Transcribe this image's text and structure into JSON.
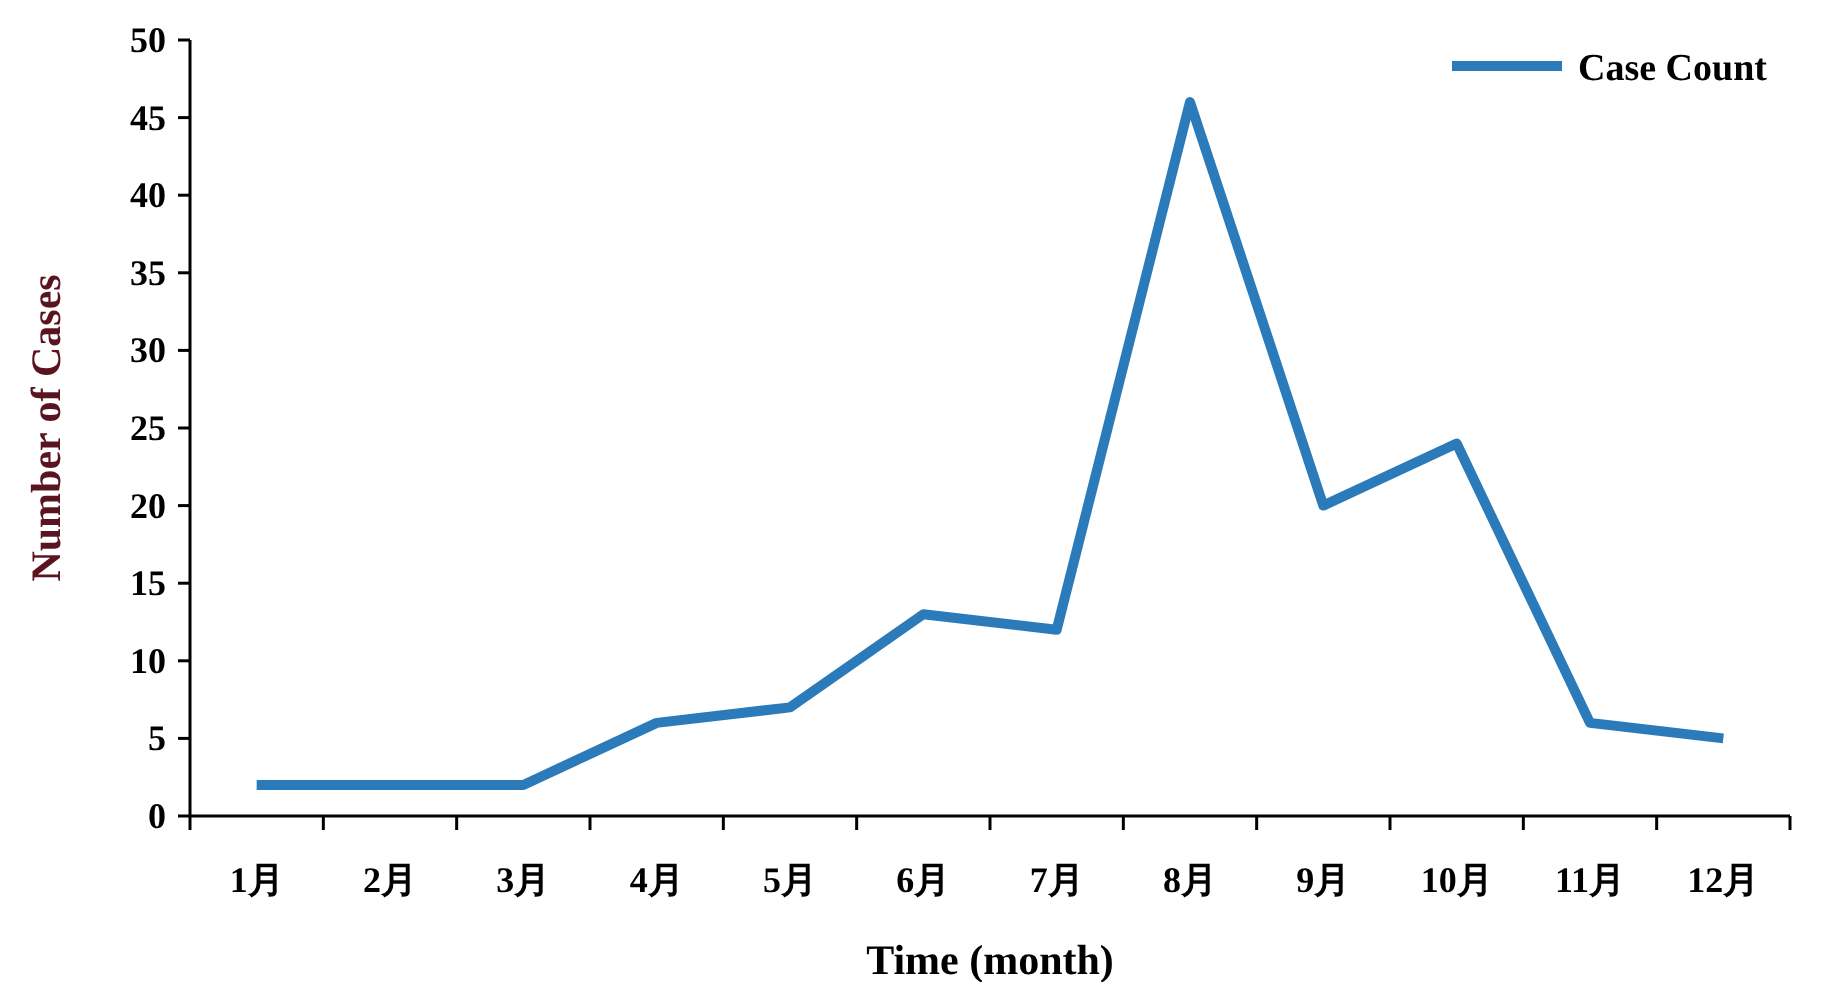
{
  "chart_data": {
    "type": "line",
    "xlabel": "Time (month)",
    "ylabel": "Number of Cases",
    "categories": [
      "1月",
      "2月",
      "3月",
      "4月",
      "5月",
      "6月",
      "7月",
      "8月",
      "9月",
      "10月",
      "11月",
      "12月"
    ],
    "series": [
      {
        "name": "Case Count",
        "color": "#2b7bba",
        "values": [
          2,
          2,
          2,
          6,
          7,
          13,
          12,
          46,
          20,
          24,
          6,
          5
        ]
      }
    ],
    "ylim": [
      0,
      50
    ],
    "yticks": [
      0,
      5,
      10,
      15,
      20,
      25,
      30,
      35,
      40,
      45,
      50
    ],
    "legend": "top right",
    "grid": false,
    "marker": "none",
    "line_style": "solid"
  }
}
